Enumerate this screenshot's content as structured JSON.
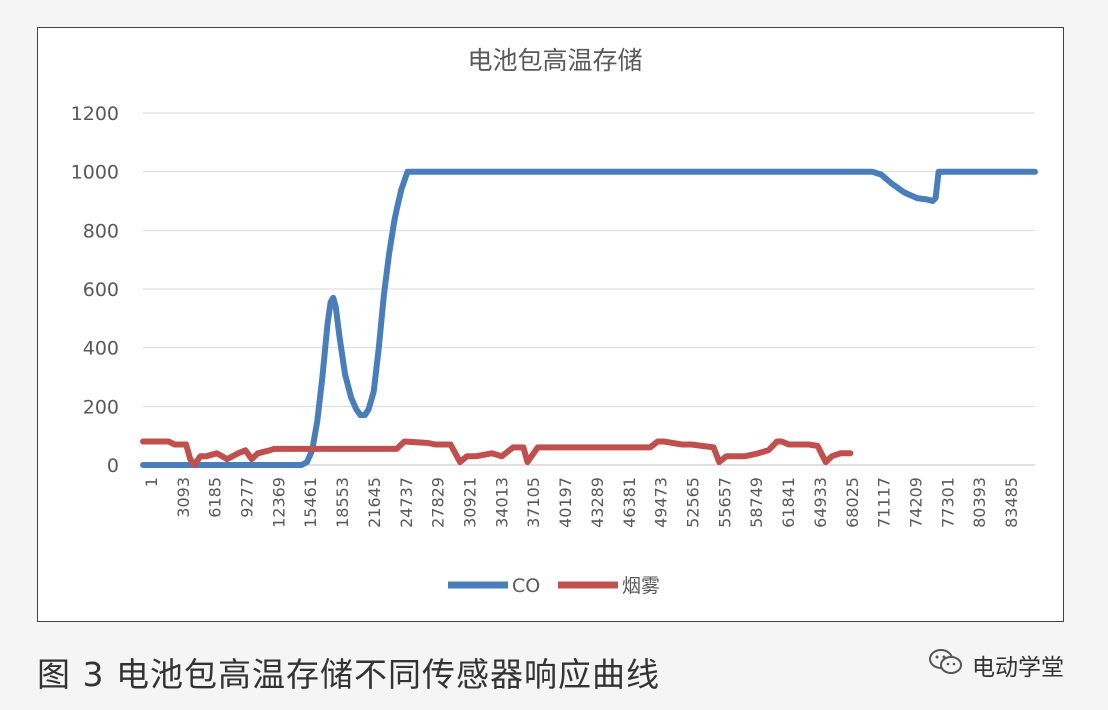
{
  "chart_data": {
    "type": "line",
    "title": "电池包高温存储",
    "xlabel": "",
    "ylabel": "",
    "ylim": [
      0,
      1200
    ],
    "yticks": [
      0,
      200,
      400,
      600,
      800,
      1000,
      1200
    ],
    "xlim": [
      1,
      87000
    ],
    "x_tick_labels": [
      "1",
      "3093",
      "6185",
      "9277",
      "12369",
      "15461",
      "18553",
      "21645",
      "24737",
      "27829",
      "30921",
      "34013",
      "37105",
      "40197",
      "43289",
      "46381",
      "49473",
      "52565",
      "55657",
      "58749",
      "61841",
      "64933",
      "68025",
      "71117",
      "74209",
      "77301",
      "80393",
      "83485"
    ],
    "grid": "horizontal",
    "legend_position": "bottom",
    "series": [
      {
        "name": "CO",
        "color": "#4a7ebb",
        "x": [
          1,
          15461,
          16000,
          16500,
          17000,
          17500,
          18000,
          18300,
          18553,
          18800,
          19200,
          19700,
          20300,
          20800,
          21200,
          21645,
          22000,
          22500,
          23000,
          23500,
          24000,
          24500,
          24737,
          25200,
          25800,
          26300,
          26800,
          70000,
          71117,
          72000,
          73000,
          74209,
          75500,
          76500,
          77000,
          77301,
          77600,
          78000,
          87000
        ],
        "y": [
          0,
          0,
          10,
          50,
          150,
          300,
          480,
          555,
          570,
          540,
          430,
          310,
          230,
          190,
          170,
          170,
          190,
          250,
          400,
          580,
          720,
          830,
          870,
          940,
          1000,
          1000,
          1000,
          1000,
          1000,
          990,
          960,
          930,
          910,
          905,
          900,
          910,
          1000,
          1000,
          1000
        ]
      },
      {
        "name": "烟雾",
        "color": "#c0504d",
        "x": [
          1,
          2500,
          3093,
          4200,
          4600,
          5000,
          5600,
          6185,
          7200,
          8200,
          9277,
          10000,
          10600,
          11200,
          12369,
          12800,
          15461,
          18553,
          21645,
          24737,
          25500,
          27829,
          28500,
          30000,
          30921,
          31600,
          32500,
          34013,
          35000,
          36100,
          37105,
          37500,
          38500,
          40197,
          43289,
          46381,
          49473,
          50200,
          50800,
          52565,
          53500,
          55657,
          56200,
          56900,
          58749,
          60000,
          61000,
          61841,
          62300,
          63000,
          64933,
          65800,
          66600,
          67200,
          68025,
          69000
        ],
        "y": [
          80,
          80,
          70,
          70,
          20,
          0,
          30,
          30,
          40,
          20,
          40,
          50,
          20,
          40,
          50,
          55,
          55,
          55,
          55,
          55,
          80,
          75,
          70,
          70,
          10,
          30,
          30,
          40,
          30,
          60,
          60,
          10,
          60,
          60,
          60,
          60,
          60,
          80,
          80,
          70,
          70,
          60,
          10,
          30,
          30,
          40,
          50,
          80,
          80,
          70,
          70,
          65,
          10,
          30,
          40,
          40
        ]
      }
    ]
  },
  "caption": "图 3  电池包高温存储不同传感器响应曲线",
  "watermark": {
    "icon": "wechat-icon",
    "text": "电动学堂"
  }
}
